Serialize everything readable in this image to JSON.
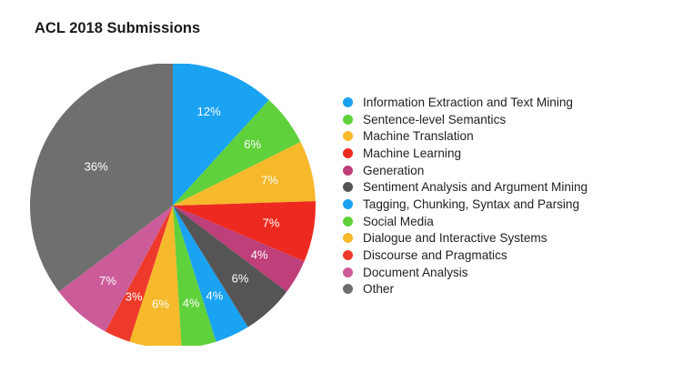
{
  "chart_data": {
    "type": "pie",
    "title": "ACL 2018 Submissions",
    "legend_position": "right",
    "slices": [
      {
        "label": "Information Extraction and Text Mining",
        "value": 12,
        "value_label": "12%",
        "color": "#1aa3f2"
      },
      {
        "label": "Sentence-level Semantics",
        "value": 6,
        "value_label": "6%",
        "color": "#5fd13a"
      },
      {
        "label": "Machine Translation",
        "value": 7,
        "value_label": "7%",
        "color": "#f6b92b"
      },
      {
        "label": "Machine Learning",
        "value": 7,
        "value_label": "7%",
        "color": "#ee2a20"
      },
      {
        "label": "Generation",
        "value": 4,
        "value_label": "4%",
        "color": "#be3f79"
      },
      {
        "label": "Sentiment Analysis and Argument Mining",
        "value": 6,
        "value_label": "6%",
        "color": "#555555"
      },
      {
        "label": "Tagging, Chunking, Syntax and Parsing",
        "value": 4,
        "value_label": "4%",
        "color": "#1aa3f2"
      },
      {
        "label": "Social Media",
        "value": 4,
        "value_label": "4%",
        "color": "#5fd13a"
      },
      {
        "label": "Dialogue and Interactive Systems",
        "value": 6,
        "value_label": "6%",
        "color": "#f6b92b"
      },
      {
        "label": "Discourse and Pragmatics",
        "value": 3,
        "value_label": "3%",
        "color": "#ee3a2a"
      },
      {
        "label": "Document Analysis",
        "value": 7,
        "value_label": "7%",
        "color": "#cc5c99"
      },
      {
        "label": "Other",
        "value": 36,
        "value_label": "36%",
        "color": "#6f6f6f"
      }
    ]
  }
}
